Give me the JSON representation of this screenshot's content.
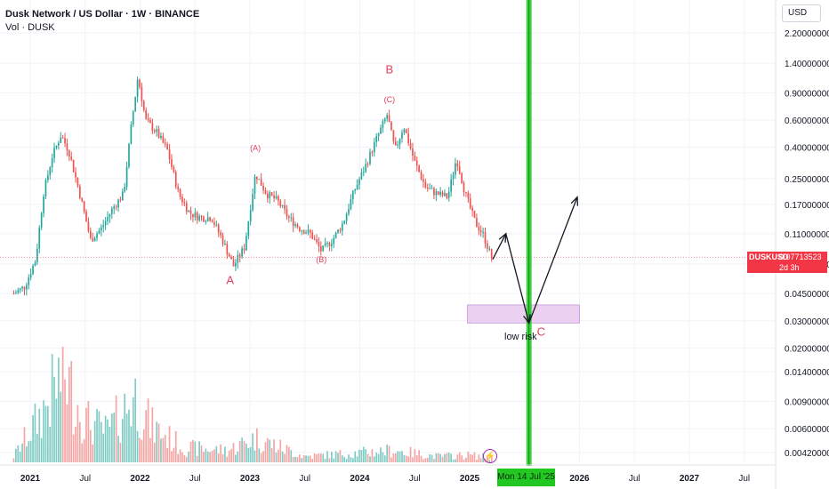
{
  "header": {
    "title": "Dusk Network / US Dollar · 1W · BINANCE",
    "volume_label": "Vol · DUSK",
    "currency": "USD"
  },
  "price_tag": {
    "symbol": "DUSKUSD",
    "price": "0.07713523",
    "countdown": "2d 3h"
  },
  "date_tag": "Mon 14 Jul '25",
  "colors": {
    "up": "#26a69a",
    "down": "#ef5350",
    "vol_up": "#80cbc4",
    "vol_down": "#f5a5a3",
    "annotation": "#e03e5b",
    "vline": "#22c722",
    "zone": "#e8c8f0"
  },
  "annotations": {
    "low_risk": "low risk",
    "bolt_icon": "lightning-icon",
    "waves": [
      {
        "text": "A",
        "date": 2022.82,
        "price": 0.052
      },
      {
        "text": "(A)",
        "date": 2023.05,
        "price": 0.38
      },
      {
        "text": "(B)",
        "date": 2023.65,
        "price": 0.072
      },
      {
        "text": "B",
        "date": 2024.27,
        "price": 1.2
      },
      {
        "text": "(C)",
        "date": 2024.27,
        "price": 0.78
      },
      {
        "text": "C",
        "date": 2025.65,
        "price": 0.024
      }
    ]
  },
  "chart_data": {
    "type": "candlestick",
    "title": "Dusk Network / US Dollar · 1W · BINANCE",
    "y_scale": "log",
    "y_ticks": [
      "2.20000000",
      "1.40000000",
      "0.90000000",
      "0.60000000",
      "0.40000000",
      "0.25000000",
      "0.17000000",
      "0.11000000",
      "0.07000000",
      "0.04500000",
      "0.03000000",
      "0.02000000",
      "0.01400000",
      "0.00900000",
      "0.00600000",
      "0.00420000"
    ],
    "y_tick_values": [
      2.2,
      1.4,
      0.9,
      0.6,
      0.4,
      0.25,
      0.17,
      0.11,
      0.07,
      0.045,
      0.03,
      0.02,
      0.014,
      0.009,
      0.006,
      0.0042
    ],
    "x_ticks": [
      {
        "label": "2021",
        "date": 2021.0,
        "bold": true
      },
      {
        "label": "Jul",
        "date": 2021.5,
        "bold": false
      },
      {
        "label": "2022",
        "date": 2022.0,
        "bold": true
      },
      {
        "label": "Jul",
        "date": 2022.5,
        "bold": false
      },
      {
        "label": "2023",
        "date": 2023.0,
        "bold": true
      },
      {
        "label": "Jul",
        "date": 2023.5,
        "bold": false
      },
      {
        "label": "2024",
        "date": 2024.0,
        "bold": true
      },
      {
        "label": "Jul",
        "date": 2024.5,
        "bold": false
      },
      {
        "label": "2025",
        "date": 2025.0,
        "bold": true
      },
      {
        "label": "2026",
        "date": 2026.0,
        "bold": true
      },
      {
        "label": "Jul",
        "date": 2026.5,
        "bold": false
      },
      {
        "label": "2027",
        "date": 2027.0,
        "bold": true
      },
      {
        "label": "Jul",
        "date": 2027.5,
        "bold": false
      }
    ],
    "last_price": 0.07713523,
    "price_anchors": [
      [
        2020.85,
        0.045
      ],
      [
        2020.95,
        0.05
      ],
      [
        2021.05,
        0.075
      ],
      [
        2021.12,
        0.2
      ],
      [
        2021.2,
        0.35
      ],
      [
        2021.28,
        0.48
      ],
      [
        2021.35,
        0.38
      ],
      [
        2021.45,
        0.2
      ],
      [
        2021.55,
        0.1
      ],
      [
        2021.65,
        0.12
      ],
      [
        2021.75,
        0.16
      ],
      [
        2021.85,
        0.2
      ],
      [
        2021.92,
        0.55
      ],
      [
        2021.98,
        1.15
      ],
      [
        2022.05,
        0.6
      ],
      [
        2022.15,
        0.5
      ],
      [
        2022.25,
        0.38
      ],
      [
        2022.35,
        0.2
      ],
      [
        2022.45,
        0.15
      ],
      [
        2022.55,
        0.14
      ],
      [
        2022.65,
        0.14
      ],
      [
        2022.75,
        0.1
      ],
      [
        2022.85,
        0.068
      ],
      [
        2022.95,
        0.09
      ],
      [
        2023.05,
        0.27
      ],
      [
        2023.15,
        0.2
      ],
      [
        2023.25,
        0.18
      ],
      [
        2023.35,
        0.14
      ],
      [
        2023.45,
        0.12
      ],
      [
        2023.55,
        0.11
      ],
      [
        2023.65,
        0.085
      ],
      [
        2023.75,
        0.1
      ],
      [
        2023.85,
        0.13
      ],
      [
        2023.95,
        0.21
      ],
      [
        2024.05,
        0.3
      ],
      [
        2024.15,
        0.45
      ],
      [
        2024.25,
        0.65
      ],
      [
        2024.32,
        0.38
      ],
      [
        2024.4,
        0.55
      ],
      [
        2024.5,
        0.32
      ],
      [
        2024.6,
        0.22
      ],
      [
        2024.7,
        0.2
      ],
      [
        2024.8,
        0.19
      ],
      [
        2024.88,
        0.34
      ],
      [
        2024.96,
        0.2
      ],
      [
        2025.05,
        0.13
      ],
      [
        2025.12,
        0.11
      ],
      [
        2025.2,
        0.077
      ]
    ],
    "candle_count": 225,
    "volume_anchors": [
      [
        2020.85,
        0.05
      ],
      [
        2021.1,
        0.4
      ],
      [
        2021.3,
        0.75
      ],
      [
        2021.5,
        0.35
      ],
      [
        2021.7,
        0.25
      ],
      [
        2021.95,
        0.55
      ],
      [
        2022.1,
        0.3
      ],
      [
        2022.4,
        0.12
      ],
      [
        2022.8,
        0.1
      ],
      [
        2023.05,
        0.2
      ],
      [
        2023.5,
        0.05
      ],
      [
        2024.0,
        0.08
      ],
      [
        2024.3,
        0.1
      ],
      [
        2024.7,
        0.05
      ],
      [
        2025.0,
        0.06
      ],
      [
        2025.2,
        0.04
      ]
    ],
    "forecast_path": [
      {
        "date": 2025.21,
        "price": 0.075
      },
      {
        "date": 2025.33,
        "price": 0.11
      },
      {
        "date": 2025.54,
        "price": 0.029
      },
      {
        "date": 2025.98,
        "price": 0.19
      }
    ],
    "target_zone": {
      "date_from": 2024.98,
      "date_to": 2026.0,
      "price_low": 0.029,
      "price_high": 0.038
    },
    "vertical_marker_date": 2025.54
  }
}
